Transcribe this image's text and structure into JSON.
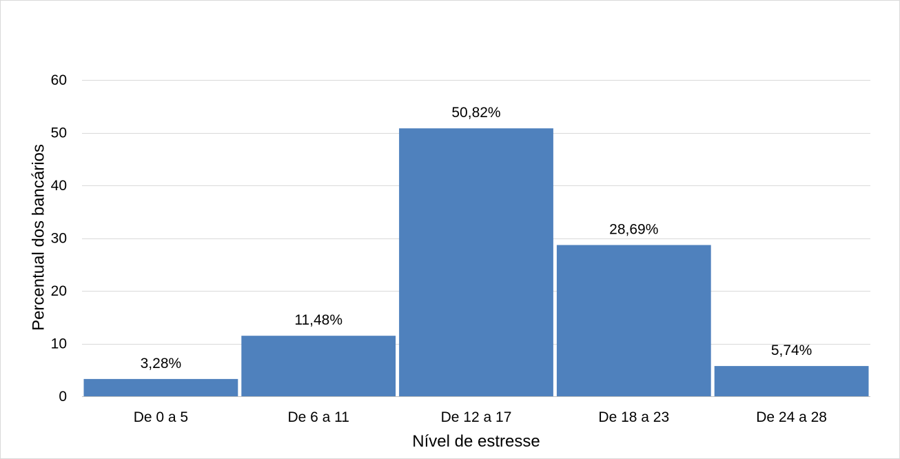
{
  "chart_data": {
    "type": "bar",
    "title": "",
    "xlabel": "Nível de estresse",
    "ylabel": "Percentual dos bancários",
    "categories": [
      "De 0 a 5",
      "De 6 a 11",
      "De 12 a 17",
      "De 18 a 23",
      "De 24 a 28"
    ],
    "values": [
      3.28,
      11.48,
      50.82,
      28.69,
      5.74
    ],
    "data_labels": [
      "3,28%",
      "11,48%",
      "50,82%",
      "28,69%",
      "5,74%"
    ],
    "ylim": [
      0,
      60
    ],
    "yticks": [
      0,
      10,
      20,
      30,
      40,
      50,
      60
    ],
    "ytick_labels": [
      "0",
      "10",
      "20",
      "30",
      "40",
      "50",
      "60"
    ],
    "grid": true,
    "legend": "none",
    "colors": {
      "bar": "#4f81bd",
      "grid": "#d9d9d9",
      "text": "#000000"
    }
  }
}
